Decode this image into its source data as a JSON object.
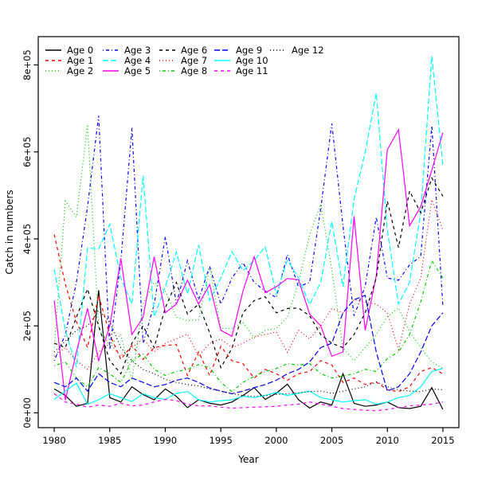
{
  "figure": {
    "background": "#ffffff",
    "foreground": "#000000"
  },
  "chart_data": {
    "type": "line",
    "title": "",
    "xlabel": "Year",
    "ylabel": "Catch in numbers",
    "xlim": [
      1978.56,
      2016.44
    ],
    "ylim": [
      -34000,
      865000
    ],
    "grid": "off",
    "legend_position": "top-left-inside-horizontal",
    "x_ticks": [
      1980,
      1985,
      1990,
      1995,
      2000,
      2005,
      2010,
      2015
    ],
    "x_tick_labels": [
      "1980",
      "1985",
      "1990",
      "1995",
      "2000",
      "2005",
      "2010",
      "2015"
    ],
    "y_ticks": [
      0,
      200000,
      400000,
      600000,
      800000
    ],
    "y_tick_labels": [
      "0e+00",
      "2e+05",
      "4e+05",
      "6e+05",
      "8e+05"
    ],
    "x": [
      1980,
      1981,
      1982,
      1983,
      1984,
      1985,
      1986,
      1987,
      1988,
      1989,
      1990,
      1991,
      1992,
      1993,
      1994,
      1995,
      1996,
      1997,
      1998,
      1999,
      2000,
      2001,
      2002,
      2003,
      2004,
      2005,
      2006,
      2007,
      2008,
      2009,
      2010,
      2011,
      2012,
      2013,
      2014,
      2015
    ],
    "series": [
      {
        "name": "Age 0",
        "color": "#000000",
        "linetype": "solid",
        "values": [
          55000,
          40000,
          15000,
          22000,
          282000,
          35000,
          25000,
          60000,
          42000,
          30000,
          55000,
          38000,
          12000,
          30000,
          22000,
          18000,
          25000,
          40000,
          58000,
          31000,
          45000,
          66000,
          30000,
          11000,
          25000,
          18000,
          90000,
          22000,
          15000,
          18000,
          25000,
          12000,
          10000,
          15000,
          58000,
          8000
        ]
      },
      {
        "name": "Age 1",
        "color": "#FF0000",
        "linetype": "dashed",
        "values": [
          410000,
          296000,
          210000,
          150000,
          270000,
          180000,
          123000,
          155000,
          123000,
          150000,
          155000,
          157000,
          86000,
          140000,
          86000,
          153000,
          120000,
          113000,
          80000,
          100000,
          90000,
          75000,
          90000,
          95000,
          120000,
          110000,
          70000,
          80000,
          65000,
          71000,
          53000,
          49000,
          60000,
          95000,
          104000,
          90000
        ]
      },
      {
        "name": "Age 2",
        "color": "#00CD00",
        "linetype": "dotted",
        "values": [
          150000,
          487000,
          450000,
          663000,
          195000,
          155000,
          180000,
          75000,
          250000,
          300000,
          280000,
          220000,
          212000,
          214000,
          335000,
          194000,
          194000,
          208000,
          172000,
          190000,
          194000,
          220000,
          300000,
          410000,
          480000,
          330000,
          150000,
          120000,
          150000,
          180000,
          221000,
          241000,
          187000,
          150000,
          117000,
          102000
        ]
      },
      {
        "name": "Age 3",
        "color": "#0000FF",
        "linetype": "dotdash",
        "values": [
          120000,
          180000,
          300000,
          474000,
          683000,
          145000,
          350000,
          655000,
          160000,
          249000,
          405000,
          250000,
          350000,
          260000,
          337000,
          250000,
          310000,
          345000,
          300000,
          280000,
          265000,
          364000,
          290000,
          300000,
          470000,
          665000,
          430000,
          223000,
          291000,
          450000,
          310000,
          305000,
          340000,
          360000,
          660000,
          245000
        ]
      },
      {
        "name": "Age 4",
        "color": "#00FFFF",
        "linetype": "longdash",
        "values": [
          330000,
          190000,
          105000,
          379000,
          377000,
          434000,
          310000,
          250000,
          545000,
          221000,
          290000,
          370000,
          273000,
          386000,
          258000,
          310000,
          371000,
          327000,
          350000,
          382000,
          273000,
          351000,
          310000,
          249000,
          300000,
          440000,
          290000,
          490000,
          600000,
          735000,
          420000,
          250000,
          300000,
          460000,
          820000,
          570000
        ]
      },
      {
        "name": "Age 5",
        "color": "#FF00FF",
        "linetype": "solid",
        "values": [
          258000,
          29000,
          140000,
          240000,
          120000,
          200000,
          355000,
          180000,
          220000,
          359000,
          230000,
          250000,
          305000,
          250000,
          295000,
          190000,
          176000,
          280000,
          359000,
          276000,
          290000,
          309000,
          306000,
          227000,
          200000,
          130000,
          140000,
          452000,
          190000,
          315000,
          605000,
          651000,
          430000,
          474000,
          558000,
          644000
        ]
      },
      {
        "name": "Age 6",
        "color": "#000000",
        "linetype": "dashed",
        "values": [
          160000,
          150000,
          220000,
          285000,
          200000,
          120000,
          90000,
          160000,
          200000,
          150000,
          242000,
          300000,
          227000,
          250000,
          184000,
          104000,
          148000,
          230000,
          258000,
          267000,
          230000,
          240000,
          241000,
          223000,
          180000,
          160000,
          150000,
          180000,
          230000,
          310000,
          487000,
          380000,
          510000,
          460000,
          540000,
          498000
        ]
      },
      {
        "name": "Age 7",
        "color": "#FF0000",
        "linetype": "dotted",
        "values": [
          130000,
          150000,
          120000,
          100000,
          140000,
          160000,
          130000,
          150000,
          170000,
          140000,
          160000,
          170000,
          181000,
          130000,
          160000,
          170000,
          150000,
          160000,
          175000,
          180000,
          186000,
          139000,
          190000,
          170000,
          200000,
          240000,
          230000,
          260000,
          255000,
          250000,
          230000,
          145000,
          250000,
          310000,
          490000,
          420000
        ]
      },
      {
        "name": "Age 8",
        "color": "#00CD00",
        "linetype": "dotdash",
        "values": [
          108000,
          117000,
          80000,
          60000,
          104000,
          90000,
          70000,
          120000,
          135000,
          100000,
          86000,
          95000,
          100000,
          111000,
          104000,
          70000,
          49000,
          70000,
          84000,
          95000,
          102000,
          113000,
          110000,
          113000,
          90000,
          80000,
          85000,
          90000,
          100000,
          95000,
          125000,
          140000,
          180000,
          255000,
          350000,
          310000
        ]
      },
      {
        "name": "Age 9",
        "color": "#0000FF",
        "linetype": "longdash",
        "values": [
          70000,
          60000,
          80000,
          50000,
          90000,
          70000,
          60000,
          80000,
          70000,
          60000,
          65000,
          75000,
          80000,
          70000,
          57000,
          50000,
          44000,
          50000,
          58000,
          65000,
          75000,
          90000,
          100000,
          117000,
          150000,
          160000,
          230000,
          260000,
          270000,
          140000,
          50000,
          60000,
          90000,
          140000,
          200000,
          230000
        ]
      },
      {
        "name": "Age 10",
        "color": "#00FFFF",
        "linetype": "solid",
        "values": [
          31000,
          50000,
          68000,
          20000,
          30000,
          44000,
          35000,
          26000,
          44000,
          35000,
          31000,
          45000,
          49000,
          30000,
          25000,
          28000,
          30000,
          38000,
          35000,
          40000,
          47000,
          40000,
          45000,
          50000,
          35000,
          30000,
          25000,
          28000,
          30000,
          20000,
          25000,
          35000,
          40000,
          60000,
          95000,
          102000
        ]
      },
      {
        "name": "Age 11",
        "color": "#FF00FF",
        "linetype": "dashed",
        "values": [
          44000,
          25000,
          20000,
          13000,
          18000,
          15000,
          22000,
          16000,
          18000,
          25000,
          31000,
          28000,
          20000,
          16000,
          16000,
          13000,
          11000,
          12000,
          13000,
          14000,
          15000,
          18000,
          20000,
          25000,
          20000,
          15000,
          10000,
          8000,
          6000,
          5000,
          8000,
          12000,
          16000,
          18000,
          20000,
          25000
        ]
      },
      {
        "name": "Age 12",
        "color": "#000000",
        "linetype": "dotted",
        "values": [
          140000,
          165000,
          190000,
          200000,
          235000,
          210000,
          150000,
          120000,
          100000,
          90000,
          77000,
          70000,
          65000,
          62000,
          55000,
          50000,
          44000,
          40000,
          38000,
          40000,
          42000,
          44000,
          46000,
          49000,
          50000,
          45000,
          50000,
          55000,
          60000,
          71000,
          60000,
          53000,
          50000,
          49000,
          55000,
          53000
        ]
      }
    ]
  }
}
